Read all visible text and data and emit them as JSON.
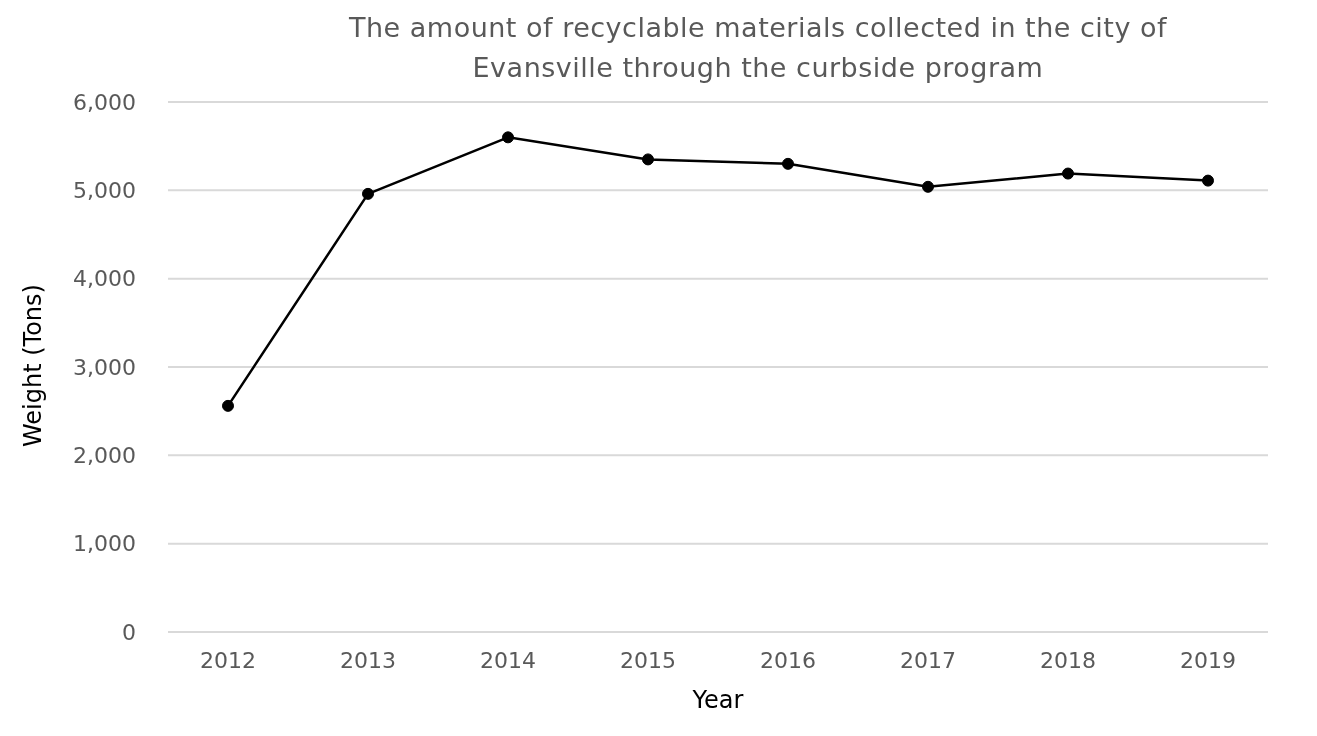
{
  "chart_data": {
    "type": "line",
    "title": "The amount of recyclable materials collected in the city of Evansville through the curbside program",
    "xlabel": "Year",
    "ylabel": "Weight (Tons)",
    "categories": [
      "2012",
      "2013",
      "2014",
      "2015",
      "2016",
      "2017",
      "2018",
      "2019"
    ],
    "series": [
      {
        "color": "#000000",
        "values": [
          2560,
          4960,
          5600,
          5350,
          5300,
          5040,
          5190,
          5110
        ]
      }
    ],
    "ylim": [
      0,
      6000
    ],
    "yticks": [
      0,
      {
        "value": 1000,
        "label": "1,000"
      },
      {
        "value": 2000,
        "label": "2,000"
      },
      {
        "value": 3000,
        "label": "3,000"
      },
      {
        "value": 4000,
        "label": "4,000"
      },
      {
        "value": 5000,
        "label": "5,000"
      },
      {
        "value": 6000,
        "label": "6,000"
      }
    ],
    "grid": "y",
    "marker": "circle",
    "line_style": "solid",
    "legend": false
  }
}
